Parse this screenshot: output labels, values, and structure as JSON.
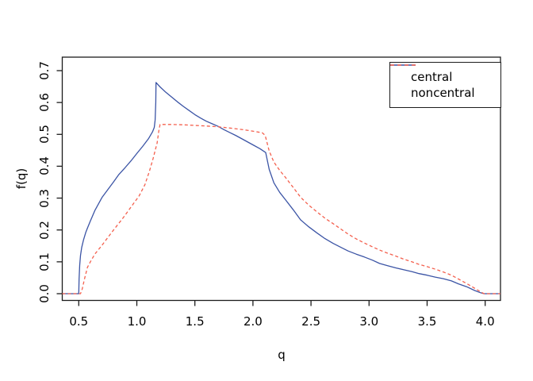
{
  "figure": {
    "background_color": "#ffffff",
    "border_color": "#1c1c1c",
    "legend_position": "top-right"
  },
  "chart_data": {
    "type": "line",
    "title": "",
    "xlabel": "q",
    "ylabel": "f(q)",
    "xlim": [
      0.358,
      4.131
    ],
    "ylim": [
      -0.021,
      0.742
    ],
    "grid": false,
    "legend_position": "top-right",
    "x_ticks": [
      {
        "value": 0.5,
        "label": "0.5"
      },
      {
        "value": 1.0,
        "label": "1.0"
      },
      {
        "value": 1.5,
        "label": "1.5"
      },
      {
        "value": 2.0,
        "label": "2.0"
      },
      {
        "value": 2.5,
        "label": "2.5"
      },
      {
        "value": 3.0,
        "label": "3.0"
      },
      {
        "value": 3.5,
        "label": "3.5"
      },
      {
        "value": 4.0,
        "label": "4.0"
      }
    ],
    "y_ticks": [
      {
        "value": 0.0,
        "label": "0.0"
      },
      {
        "value": 0.1,
        "label": "0.1"
      },
      {
        "value": 0.2,
        "label": "0.2"
      },
      {
        "value": 0.3,
        "label": "0.3"
      },
      {
        "value": 0.4,
        "label": "0.4"
      },
      {
        "value": 0.5,
        "label": "0.5"
      },
      {
        "value": 0.6,
        "label": "0.6"
      },
      {
        "value": 0.7,
        "label": "0.7"
      }
    ],
    "series": [
      {
        "name": "central",
        "color": "#3b54a5",
        "line_style": "solid",
        "points": [
          [
            0.358,
            0
          ],
          [
            0.5,
            0
          ],
          [
            0.503,
            0.045
          ],
          [
            0.508,
            0.09
          ],
          [
            0.515,
            0.12
          ],
          [
            0.525,
            0.145
          ],
          [
            0.54,
            0.168
          ],
          [
            0.56,
            0.192
          ],
          [
            0.575,
            0.206
          ],
          [
            0.6,
            0.228
          ],
          [
            0.64,
            0.262
          ],
          [
            0.7,
            0.302
          ],
          [
            0.745,
            0.324
          ],
          [
            0.8,
            0.351
          ],
          [
            0.845,
            0.374
          ],
          [
            0.9,
            0.396
          ],
          [
            0.95,
            0.417
          ],
          [
            1.0,
            0.44
          ],
          [
            1.05,
            0.462
          ],
          [
            1.1,
            0.486
          ],
          [
            1.135,
            0.508
          ],
          [
            1.15,
            0.522
          ],
          [
            1.158,
            0.545
          ],
          [
            1.163,
            0.6
          ],
          [
            1.165,
            0.663
          ],
          [
            1.2,
            0.649
          ],
          [
            1.25,
            0.632
          ],
          [
            1.3,
            0.617
          ],
          [
            1.35,
            0.602
          ],
          [
            1.4,
            0.588
          ],
          [
            1.45,
            0.575
          ],
          [
            1.5,
            0.562
          ],
          [
            1.55,
            0.551
          ],
          [
            1.6,
            0.541
          ],
          [
            1.65,
            0.533
          ],
          [
            1.7,
            0.525
          ],
          [
            1.75,
            0.515
          ],
          [
            1.8,
            0.506
          ],
          [
            1.85,
            0.497
          ],
          [
            1.9,
            0.487
          ],
          [
            1.95,
            0.477
          ],
          [
            2.0,
            0.467
          ],
          [
            2.06,
            0.455
          ],
          [
            2.11,
            0.443
          ],
          [
            2.14,
            0.39
          ],
          [
            2.18,
            0.348
          ],
          [
            2.23,
            0.318
          ],
          [
            2.28,
            0.295
          ],
          [
            2.35,
            0.262
          ],
          [
            2.41,
            0.232
          ],
          [
            2.48,
            0.21
          ],
          [
            2.55,
            0.191
          ],
          [
            2.62,
            0.173
          ],
          [
            2.69,
            0.158
          ],
          [
            2.76,
            0.145
          ],
          [
            2.82,
            0.134
          ],
          [
            2.89,
            0.124
          ],
          [
            2.96,
            0.115
          ],
          [
            3.03,
            0.105
          ],
          [
            3.09,
            0.095
          ],
          [
            3.16,
            0.088
          ],
          [
            3.23,
            0.081
          ],
          [
            3.3,
            0.075
          ],
          [
            3.37,
            0.069
          ],
          [
            3.43,
            0.063
          ],
          [
            3.5,
            0.058
          ],
          [
            3.57,
            0.052
          ],
          [
            3.64,
            0.047
          ],
          [
            3.71,
            0.04
          ],
          [
            3.77,
            0.031
          ],
          [
            3.84,
            0.022
          ],
          [
            3.91,
            0.01
          ],
          [
            3.96,
            0.003
          ],
          [
            3.99,
            0
          ],
          [
            4.131,
            0
          ]
        ]
      },
      {
        "name": "noncentral",
        "color": "#f4604e",
        "line_style": "dashed",
        "points": [
          [
            0.358,
            0
          ],
          [
            0.515,
            0
          ],
          [
            0.53,
            0.015
          ],
          [
            0.55,
            0.047
          ],
          [
            0.575,
            0.083
          ],
          [
            0.6,
            0.1
          ],
          [
            0.64,
            0.125
          ],
          [
            0.7,
            0.152
          ],
          [
            0.745,
            0.174
          ],
          [
            0.8,
            0.2
          ],
          [
            0.88,
            0.237
          ],
          [
            0.95,
            0.272
          ],
          [
            1.02,
            0.307
          ],
          [
            1.07,
            0.342
          ],
          [
            1.11,
            0.386
          ],
          [
            1.14,
            0.424
          ],
          [
            1.175,
            0.473
          ],
          [
            1.19,
            0.512
          ],
          [
            1.2,
            0.531
          ],
          [
            1.3,
            0.531
          ],
          [
            1.4,
            0.53
          ],
          [
            1.5,
            0.528
          ],
          [
            1.6,
            0.526
          ],
          [
            1.7,
            0.524
          ],
          [
            1.8,
            0.52
          ],
          [
            1.87,
            0.517
          ],
          [
            1.95,
            0.513
          ],
          [
            2.02,
            0.509
          ],
          [
            2.08,
            0.505
          ],
          [
            2.105,
            0.497
          ],
          [
            2.14,
            0.448
          ],
          [
            2.18,
            0.413
          ],
          [
            2.23,
            0.387
          ],
          [
            2.28,
            0.365
          ],
          [
            2.35,
            0.332
          ],
          [
            2.41,
            0.303
          ],
          [
            2.48,
            0.278
          ],
          [
            2.55,
            0.257
          ],
          [
            2.62,
            0.237
          ],
          [
            2.69,
            0.22
          ],
          [
            2.76,
            0.202
          ],
          [
            2.82,
            0.187
          ],
          [
            2.89,
            0.172
          ],
          [
            2.96,
            0.159
          ],
          [
            3.03,
            0.147
          ],
          [
            3.09,
            0.137
          ],
          [
            3.16,
            0.127
          ],
          [
            3.23,
            0.118
          ],
          [
            3.3,
            0.108
          ],
          [
            3.37,
            0.1
          ],
          [
            3.43,
            0.092
          ],
          [
            3.5,
            0.085
          ],
          [
            3.57,
            0.077
          ],
          [
            3.64,
            0.068
          ],
          [
            3.71,
            0.058
          ],
          [
            3.77,
            0.046
          ],
          [
            3.84,
            0.032
          ],
          [
            3.91,
            0.017
          ],
          [
            3.96,
            0.006
          ],
          [
            3.99,
            0
          ],
          [
            4.131,
            0
          ]
        ]
      }
    ]
  }
}
